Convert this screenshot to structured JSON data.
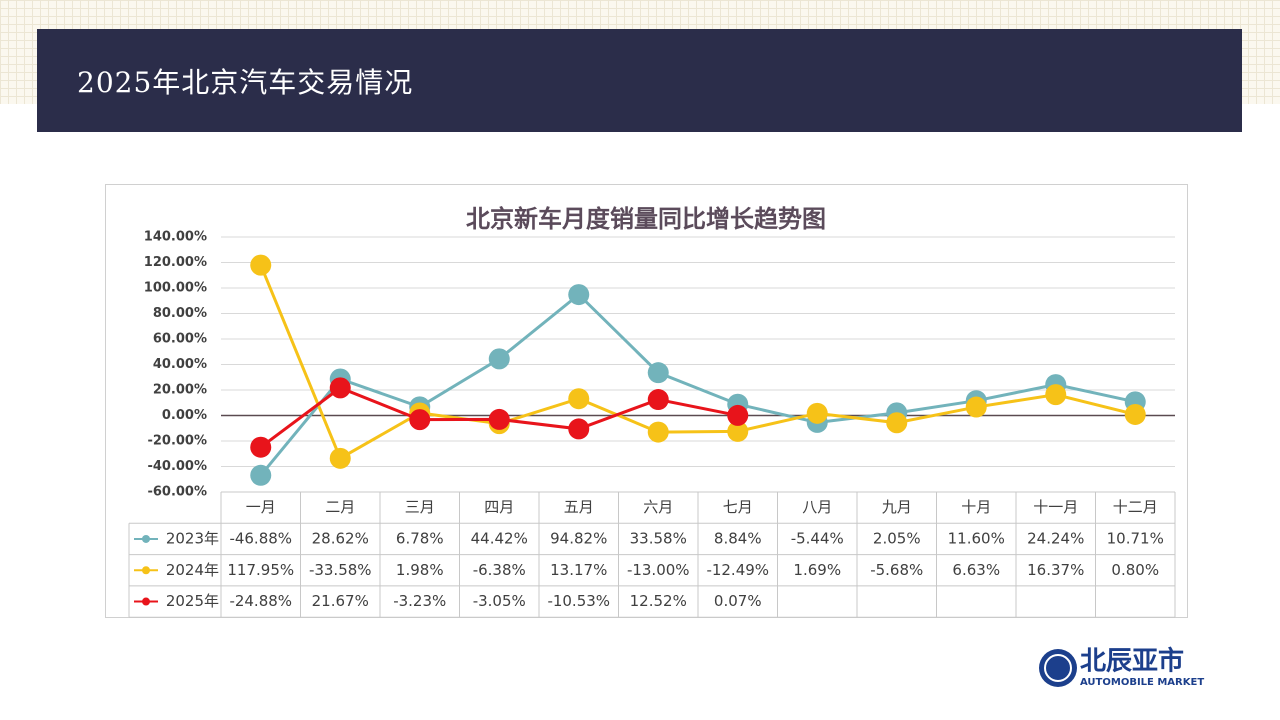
{
  "header": {
    "title": "2025年北京汽车交易情况"
  },
  "logo": {
    "name": "北辰亚市",
    "subtitle": "AUTOMOBILE MARKET"
  },
  "chart_data": {
    "type": "line",
    "title": "北京新车月度销量同比增长趋势图",
    "categories": [
      "一月",
      "二月",
      "三月",
      "四月",
      "五月",
      "六月",
      "七月",
      "八月",
      "九月",
      "十月",
      "十一月",
      "十二月"
    ],
    "ylim": [
      -60,
      140
    ],
    "yticks": [
      {
        "value": -60,
        "label": "-60.00%"
      },
      {
        "value": -40,
        "label": "-40.00%"
      },
      {
        "value": -20,
        "label": "-20.00%"
      },
      {
        "value": 0,
        "label": "0.00%"
      },
      {
        "value": 20,
        "label": "20.00%"
      },
      {
        "value": 40,
        "label": "40.00%"
      },
      {
        "value": 60,
        "label": "60.00%"
      },
      {
        "value": 80,
        "label": "80.00%"
      },
      {
        "value": 100,
        "label": "100.00%"
      },
      {
        "value": 120,
        "label": "120.00%"
      },
      {
        "value": 140,
        "label": "140.00%"
      }
    ],
    "grid": true,
    "series": [
      {
        "name": "2023年",
        "color": "#72b3bb",
        "values": [
          -46.88,
          28.62,
          6.78,
          44.42,
          94.82,
          33.58,
          8.84,
          -5.44,
          2.05,
          11.6,
          24.24,
          10.71
        ],
        "value_labels": [
          "-46.88%",
          "28.62%",
          "6.78%",
          "44.42%",
          "94.82%",
          "33.58%",
          "8.84%",
          "-5.44%",
          "2.05%",
          "11.60%",
          "24.24%",
          "10.71%"
        ]
      },
      {
        "name": "2024年",
        "color": "#f6c218",
        "values": [
          117.95,
          -33.58,
          1.98,
          -6.38,
          13.17,
          -13.0,
          -12.49,
          1.69,
          -5.68,
          6.63,
          16.37,
          0.8
        ],
        "value_labels": [
          "117.95%",
          "-33.58%",
          "1.98%",
          "-6.38%",
          "13.17%",
          "-13.00%",
          "-12.49%",
          "1.69%",
          "-5.68%",
          "6.63%",
          "16.37%",
          "0.80%"
        ]
      },
      {
        "name": "2025年",
        "color": "#e8141b",
        "values": [
          -24.88,
          21.67,
          -3.23,
          -3.05,
          -10.53,
          12.52,
          0.07,
          null,
          null,
          null,
          null,
          null
        ],
        "value_labels": [
          "-24.88%",
          "21.67%",
          "-3.23%",
          "-3.05%",
          "-10.53%",
          "12.52%",
          "0.07%",
          null,
          null,
          null,
          null,
          null
        ]
      }
    ]
  }
}
